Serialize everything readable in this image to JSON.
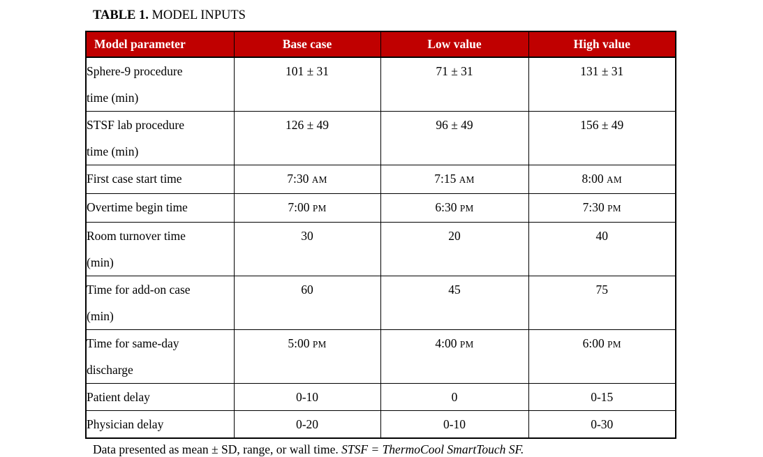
{
  "page": {
    "background_color": "#ffffff",
    "text_color": "#000000"
  },
  "table_title": {
    "label_bold": "TABLE 1.",
    "label_rest": " MODEL INPUTS"
  },
  "table": {
    "header_bg_color": "#c00000",
    "header_text_color": "#ffffff",
    "border_color": "#000000",
    "columns": [
      "Model parameter",
      "Base case",
      "Low value",
      "High value"
    ],
    "rows": [
      {
        "cells": [
          "Sphere-9 procedure\ntime (min)",
          "101 ± 31",
          "71 ± 31",
          "131 ± 31"
        ]
      },
      {
        "cells": [
          "STSF lab procedure\ntime (min)",
          "126 ± 49",
          "96 ± 49",
          "156 ± 49"
        ]
      },
      {
        "cells": [
          "First case start time",
          "7:30 AM",
          "7:15 AM",
          "8:00 AM"
        ]
      },
      {
        "cells": [
          "Overtime begin time",
          "7:00 PM",
          "6:30 PM",
          "7:30 PM"
        ]
      },
      {
        "cells": [
          "Room turnover time\n(min)",
          "30",
          "20",
          "40"
        ]
      },
      {
        "cells": [
          "Time for add-on case\n(min)",
          "60",
          "45",
          "75"
        ]
      },
      {
        "cells": [
          "Time for same-day\ndischarge",
          "5:00 PM",
          "4:00 PM",
          "6:00 PM"
        ]
      },
      {
        "cells": [
          "Patient delay",
          "0-10",
          "0",
          "0-15"
        ]
      },
      {
        "cells": [
          "Physician delay",
          "0-20",
          "0-10",
          "0-30"
        ]
      }
    ]
  },
  "footnote": {
    "normal": "Data presented as mean ± SD, range, or wall time. ",
    "italic": "STSF = ThermoCool SmartTouch SF."
  }
}
